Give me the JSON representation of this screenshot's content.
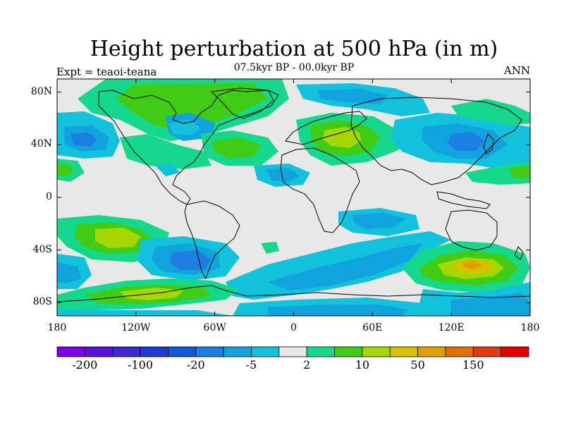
{
  "title": "Height perturbation at 500 hPa (in m)",
  "subtitle": "07.5kyr BP - 00.0kyr BP",
  "left_tag": "Expt = teaoi-teana",
  "right_tag": "ANN",
  "y_ticks": [
    {
      "label": "80N",
      "lat": 80
    },
    {
      "label": "40N",
      "lat": 40
    },
    {
      "label": "0",
      "lat": 0
    },
    {
      "label": "40S",
      "lat": -40
    },
    {
      "label": "80S",
      "lat": -80
    }
  ],
  "x_ticks": [
    {
      "label": "180",
      "lon": -180
    },
    {
      "label": "120W",
      "lon": -120
    },
    {
      "label": "60W",
      "lon": -60
    },
    {
      "label": "0",
      "lon": 0
    },
    {
      "label": "60E",
      "lon": 60
    },
    {
      "label": "120E",
      "lon": 120
    },
    {
      "label": "180",
      "lon": 180
    }
  ],
  "colorbar": {
    "colors": [
      "#7a00e6",
      "#5c0fd9",
      "#3c28d4",
      "#1f3ad6",
      "#1058d8",
      "#1c7ee0",
      "#11a3dd",
      "#12c2dc",
      "#e8e8e8",
      "#16d88c",
      "#40cc14",
      "#a6d700",
      "#d6c000",
      "#e0a000",
      "#e07000",
      "#e03a10",
      "#e30000"
    ],
    "labels": [
      {
        "text": "-200",
        "index": 1
      },
      {
        "text": "-100",
        "index": 3
      },
      {
        "text": "-20",
        "index": 5
      },
      {
        "text": "-5",
        "index": 7
      },
      {
        "text": "2",
        "index": 9
      },
      {
        "text": "10",
        "index": 11
      },
      {
        "text": "50",
        "index": 13
      },
      {
        "text": "150",
        "index": 15
      }
    ]
  },
  "field_colors": {
    "land_background": "#e8e8e8",
    "neg_light": "#12c2dc",
    "neg_mid": "#11a3dd",
    "neg_dark": "#1c7ee0",
    "pos_light": "#16d88c",
    "pos_mid": "#40cc14",
    "pos_strong": "#a6d700",
    "pos_max": "#e0a000"
  }
}
